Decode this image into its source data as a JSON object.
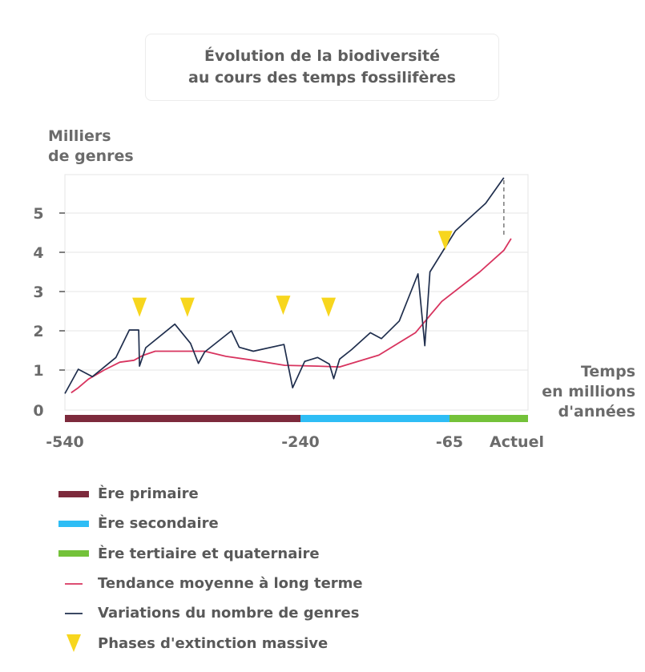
{
  "title": {
    "line1": "Évolution de la biodiversité",
    "line2": "au cours des temps fossilifères"
  },
  "ylabel": {
    "line1": "Milliers",
    "line2": "de genres"
  },
  "xlabel": {
    "line1": "Temps",
    "line2": "en millions",
    "line3": "d'années"
  },
  "colors": {
    "primaire": "#7d2a3c",
    "secondaire": "#2ebdf5",
    "tertiaire": "#74c23a",
    "trend": "#d8345f",
    "variations": "#1f2e4d",
    "extinction": "#f7d61e",
    "grid": "#e6e6e6",
    "axis": "#6b6b6b"
  },
  "chart_data": {
    "type": "line",
    "x_ticks": [
      {
        "label": "-540",
        "value": -540
      },
      {
        "label": "-240",
        "value": -240
      },
      {
        "label": "-65",
        "value": -65
      },
      {
        "label": "Actuel",
        "value": 0
      }
    ],
    "y_ticks": [
      0,
      1,
      2,
      3,
      4,
      5
    ],
    "ylim": [
      0,
      5.9
    ],
    "xlim": [
      -540,
      0
    ],
    "eras": [
      {
        "name": "Ère primaire",
        "from": -540,
        "to": -240,
        "color": "#7d2a3c"
      },
      {
        "name": "Ère secondaire",
        "from": -240,
        "to": -65,
        "color": "#2ebdf5"
      },
      {
        "name": "Ère tertiaire et quaternaire",
        "from": -65,
        "to": 0,
        "color": "#74c23a"
      }
    ],
    "series": [
      {
        "name": "Variations du nombre de genres",
        "color": "#1f2e4d",
        "points": [
          [
            -540,
            0.4
          ],
          [
            -523,
            1.02
          ],
          [
            -505,
            0.83
          ],
          [
            -475,
            1.32
          ],
          [
            -458,
            2.02
          ],
          [
            -446,
            2.02
          ],
          [
            -445,
            1.1
          ],
          [
            -437,
            1.57
          ],
          [
            -400,
            2.17
          ],
          [
            -380,
            1.68
          ],
          [
            -370,
            1.17
          ],
          [
            -362,
            1.46
          ],
          [
            -328,
            2.0
          ],
          [
            -318,
            1.58
          ],
          [
            -300,
            1.48
          ],
          [
            -261,
            1.65
          ],
          [
            -250,
            0.55
          ],
          [
            -235,
            1.22
          ],
          [
            -220,
            1.32
          ],
          [
            -206,
            1.15
          ],
          [
            -201,
            0.78
          ],
          [
            -194,
            1.28
          ],
          [
            -180,
            1.52
          ],
          [
            -158,
            1.95
          ],
          [
            -145,
            1.8
          ],
          [
            -124,
            2.25
          ],
          [
            -102,
            3.45
          ],
          [
            -94,
            1.62
          ],
          [
            -88,
            3.5
          ],
          [
            -60,
            4.55
          ],
          [
            -35,
            5.25
          ],
          [
            -20,
            5.9
          ]
        ]
      },
      {
        "name": "Tendance moyenne à long terme",
        "color": "#d8345f",
        "points": [
          [
            -532,
            0.42
          ],
          [
            -523,
            0.55
          ],
          [
            -510,
            0.77
          ],
          [
            -490,
            1.0
          ],
          [
            -470,
            1.2
          ],
          [
            -452,
            1.25
          ],
          [
            -441,
            1.37
          ],
          [
            -425,
            1.48
          ],
          [
            -395,
            1.48
          ],
          [
            -362,
            1.48
          ],
          [
            -335,
            1.35
          ],
          [
            -300,
            1.25
          ],
          [
            -260,
            1.12
          ],
          [
            -220,
            1.1
          ],
          [
            -194,
            1.08
          ],
          [
            -148,
            1.38
          ],
          [
            -105,
            1.95
          ],
          [
            -74,
            2.75
          ],
          [
            -40,
            3.5
          ],
          [
            -20,
            4.05
          ],
          [
            -14,
            4.35
          ]
        ]
      }
    ],
    "dashed_segment": {
      "x": -20,
      "y_from": 4.45,
      "y_to": 5.9,
      "color": "#7a7a7a"
    },
    "extinctions": [
      {
        "x": -445,
        "y": 2.6
      },
      {
        "x": -384,
        "y": 2.6
      },
      {
        "x": -262,
        "y": 2.65
      },
      {
        "x": -207,
        "y": 2.6
      },
      {
        "x": -70,
        "y": 4.3
      }
    ]
  },
  "legend": [
    {
      "label": "Ère primaire",
      "kind": "bar",
      "color": "#7d2a3c",
      "icon": "bar-swatch"
    },
    {
      "label": "Ère secondaire",
      "kind": "bar",
      "color": "#2ebdf5",
      "icon": "bar-swatch"
    },
    {
      "label": "Ère tertiaire et quaternaire",
      "kind": "bar",
      "color": "#74c23a",
      "icon": "bar-swatch"
    },
    {
      "label": "Tendance moyenne à long terme",
      "kind": "line",
      "color": "#d8345f",
      "icon": "line-swatch"
    },
    {
      "label": "Variations du nombre de genres",
      "kind": "line",
      "color": "#1f2e4d",
      "icon": "line-swatch"
    },
    {
      "label": "Phases d'extinction massive",
      "kind": "triangle",
      "color": "#f7d61e",
      "icon": "triangle-down-icon"
    }
  ]
}
